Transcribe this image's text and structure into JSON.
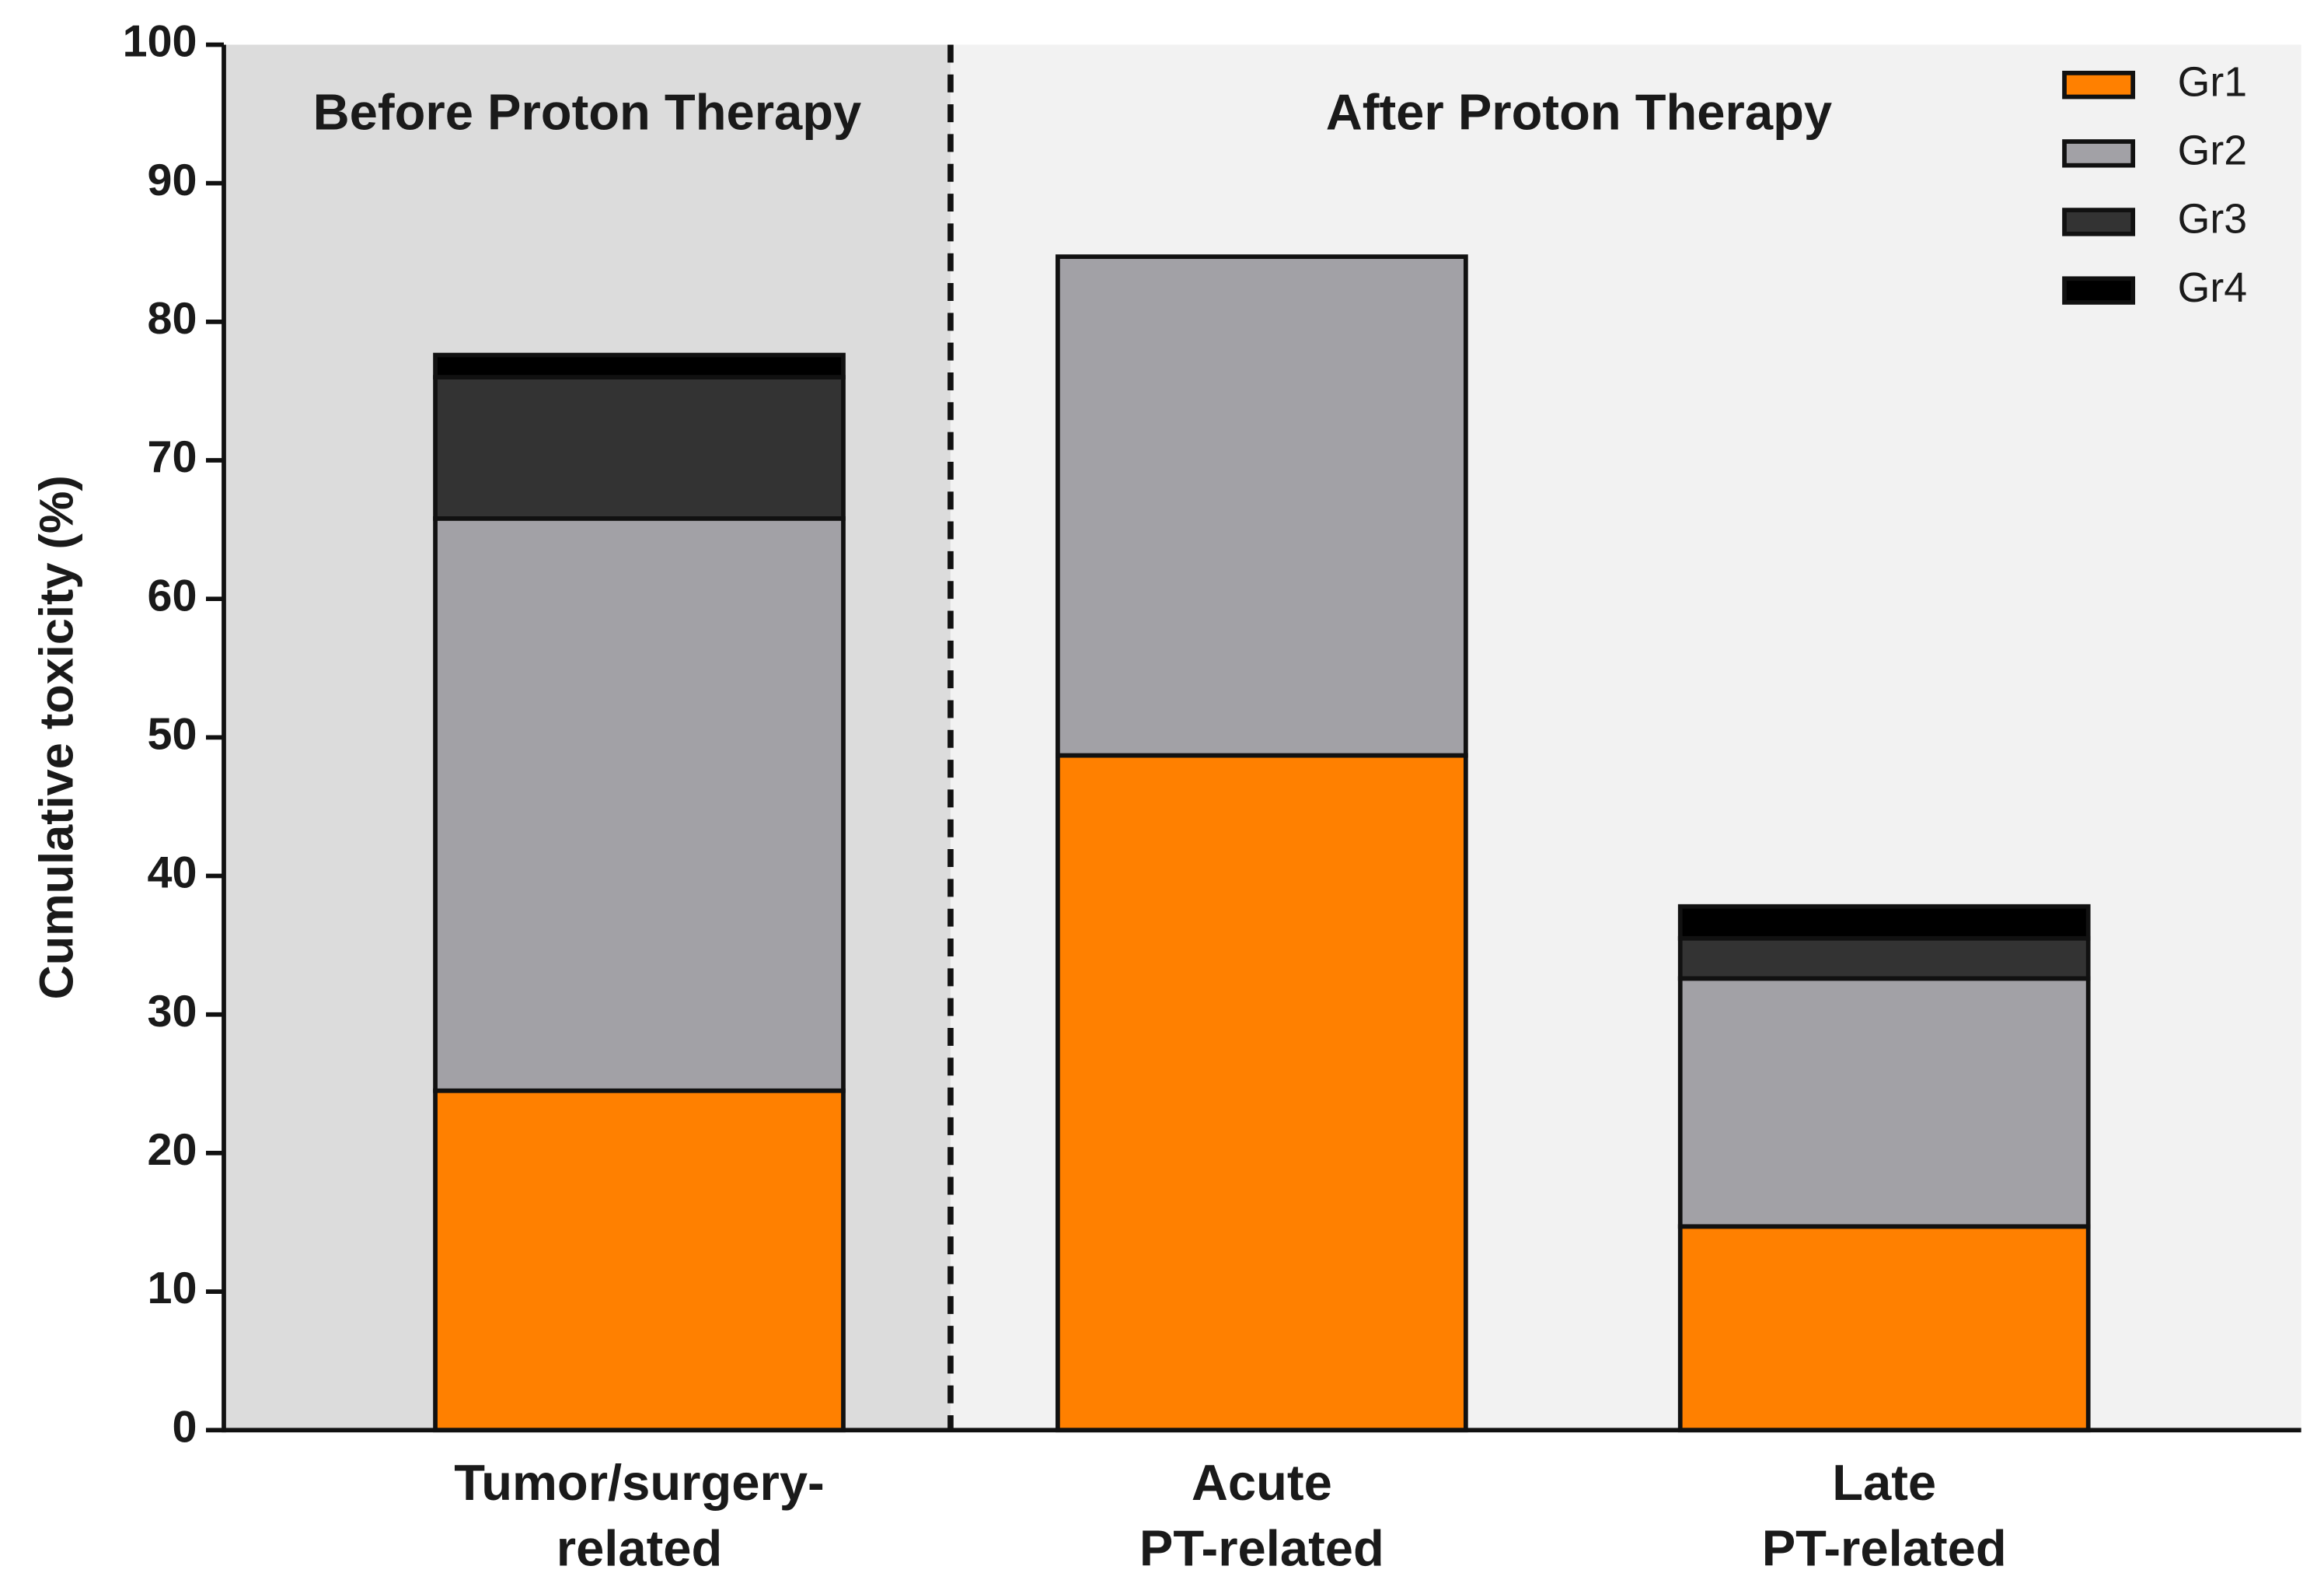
{
  "chart_data": {
    "type": "stacked_bar",
    "y_label": "Cumulative toxicity (%)",
    "annotations": [
      "Before Proton Therapy",
      "After Proton Therapy"
    ],
    "categories": [
      [
        "Tumor/surgery-",
        "related"
      ],
      [
        "Acute",
        "PT-related"
      ],
      [
        "Late",
        "PT-related"
      ]
    ],
    "series": [
      {
        "name": "Gr1",
        "color": "#ff8000",
        "values": [
          24.5,
          48.7,
          14.7
        ]
      },
      {
        "name": "Gr2",
        "color": "#a2a1a6",
        "values": [
          41.3,
          36,
          17.9
        ]
      },
      {
        "name": "Gr3",
        "color": "#333333",
        "values": [
          10.2,
          0,
          2.9
        ]
      },
      {
        "name": "Gr4",
        "color": "#000000",
        "values": [
          1.6,
          0,
          2.3
        ]
      }
    ],
    "ylim": [
      0,
      100
    ],
    "yticks": [
      0,
      10,
      20,
      30,
      40,
      50,
      60,
      70,
      80,
      90,
      100
    ],
    "legend": "top-right"
  }
}
